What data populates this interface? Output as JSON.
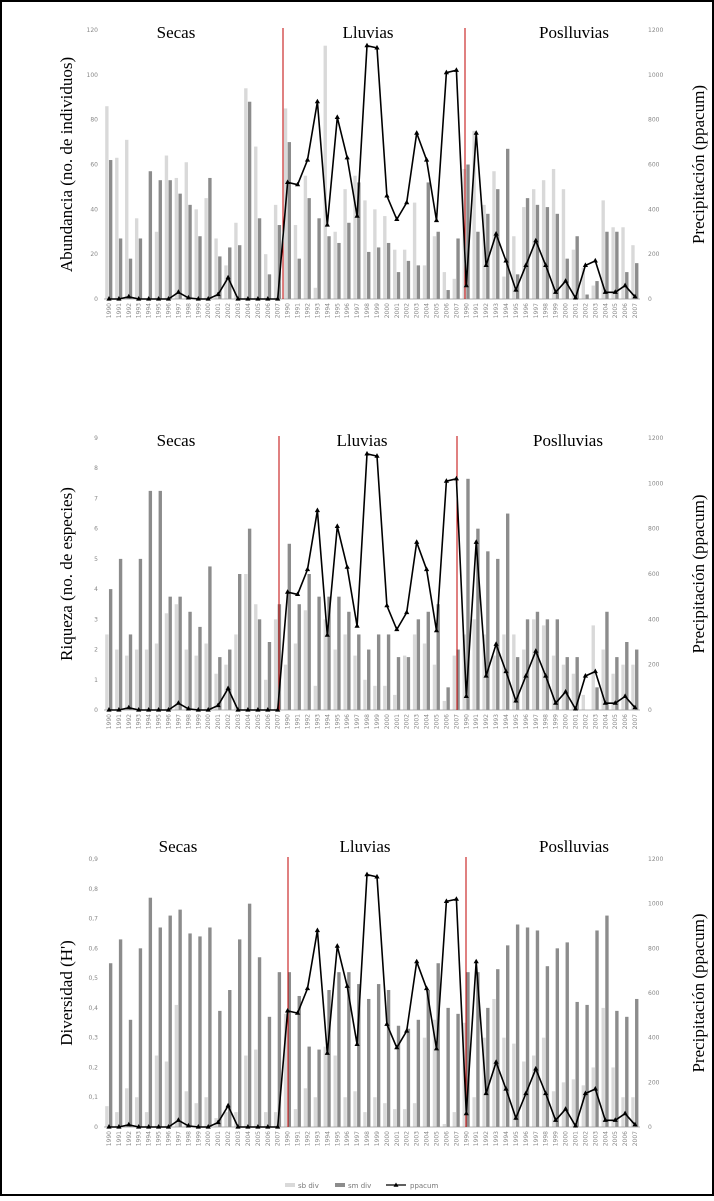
{
  "chart_data": [
    {
      "type": "bar",
      "ylabel": "Abundancia  (no. de  individuos)",
      "y2label": "Precipitación  (ppacum)",
      "ylim": [
        0,
        120
      ],
      "y_ticks": [
        0,
        20,
        40,
        60,
        80,
        100,
        120
      ],
      "y2lim": [
        0,
        1200
      ],
      "y2_ticks": [
        0,
        200,
        400,
        600,
        800,
        1000,
        1200
      ],
      "seasons": [
        "Secas",
        "Lluvias",
        "Poslluvias"
      ],
      "x_labels": [
        "1990",
        "1991",
        "1992",
        "1993",
        "1994",
        "1995",
        "1996",
        "1997",
        "1998",
        "1999",
        "2000",
        "2001",
        "2002",
        "2003",
        "2004",
        "2005",
        "2006",
        "2007",
        "1990",
        "1991",
        "1992",
        "1993",
        "1994",
        "1995",
        "1996",
        "1997",
        "1998",
        "1999",
        "2000",
        "2001",
        "2002",
        "2003",
        "2004",
        "2005",
        "2006",
        "2007",
        "1990",
        "1991",
        "1992",
        "1993",
        "1994",
        "1995",
        "1996",
        "1997",
        "1998",
        "1999",
        "2000",
        "2001",
        "2002",
        "2003",
        "2004",
        "2005",
        "2006",
        "2007"
      ],
      "series": [
        {
          "name": "sb div",
          "kind": "bar",
          "values": [
            86,
            63,
            71,
            36,
            0,
            30,
            64,
            54,
            61,
            40,
            45,
            27,
            15,
            34,
            94,
            68,
            20,
            42,
            85,
            33,
            55,
            5,
            113,
            30,
            49,
            55,
            44,
            40,
            37,
            22,
            22,
            43,
            15,
            28,
            12,
            9,
            58,
            75,
            42,
            57,
            10,
            28,
            41,
            49,
            53,
            58,
            49,
            22,
            14,
            6,
            44,
            32,
            32,
            24
          ]
        },
        {
          "name": "sm div",
          "kind": "bar",
          "values": [
            62,
            27,
            18,
            27,
            57,
            53,
            53,
            47,
            42,
            28,
            54,
            19,
            23,
            24,
            88,
            36,
            11,
            33,
            70,
            18,
            45,
            36,
            28,
            25,
            34,
            52,
            21,
            23,
            25,
            12,
            17,
            15,
            52,
            30,
            4,
            27,
            60,
            30,
            38,
            49,
            67,
            11,
            45,
            42,
            41,
            38,
            18,
            28,
            2,
            8,
            30,
            30,
            12,
            16
          ]
        },
        {
          "name": "ppacum",
          "kind": "line",
          "axis": "right",
          "values": [
            0,
            0,
            10,
            0,
            0,
            0,
            0,
            30,
            5,
            0,
            0,
            20,
            95,
            0,
            0,
            0,
            0,
            0,
            520,
            510,
            620,
            880,
            330,
            810,
            630,
            370,
            1130,
            1120,
            460,
            355,
            430,
            740,
            620,
            350,
            1010,
            1020,
            60,
            740,
            150,
            290,
            170,
            40,
            150,
            260,
            150,
            30,
            80,
            5,
            150,
            170,
            30,
            30,
            60,
            10
          ]
        }
      ]
    },
    {
      "type": "bar",
      "ylabel": "Riqueza  (no. de  especies)",
      "y2label": "Precipitación  (ppacum)",
      "ylim": [
        0,
        9
      ],
      "y_ticks": [
        0,
        1,
        2,
        3,
        4,
        5,
        6,
        7,
        8,
        9
      ],
      "y2lim": [
        0,
        1200
      ],
      "y2_ticks": [
        0,
        200,
        400,
        600,
        800,
        1000,
        1200
      ],
      "seasons": [
        "Secas",
        "Lluvias",
        "Poslluvias"
      ],
      "x_labels": [
        "1990",
        "1991",
        "1992",
        "1993",
        "1994",
        "1995",
        "1996",
        "1997",
        "1998",
        "1999",
        "2000",
        "2001",
        "2002",
        "2003",
        "2004",
        "2005",
        "2006",
        "2007",
        "1990",
        "1991",
        "1992",
        "1993",
        "1994",
        "1995",
        "1996",
        "1997",
        "1998",
        "1999",
        "2000",
        "2001",
        "2002",
        "2003",
        "2004",
        "2005",
        "2006",
        "2007",
        "1990",
        "1991",
        "1992",
        "1993",
        "1994",
        "1995",
        "1996",
        "1997",
        "1998",
        "1999",
        "2000",
        "2001",
        "2002",
        "2003",
        "2004",
        "2005",
        "2006",
        "2007"
      ],
      "series": [
        {
          "name": "sb div",
          "kind": "bar",
          "values": [
            2.5,
            2,
            1.8,
            2,
            2,
            2.2,
            3.2,
            3.5,
            2,
            1.8,
            2.2,
            1.2,
            1.5,
            2.5,
            4.5,
            3.5,
            1,
            3,
            1.5,
            2.2,
            3.3,
            0.8,
            3,
            2,
            2.5,
            1.8,
            1,
            0.8,
            0.8,
            0.5,
            1.8,
            2.5,
            2.2,
            1.5,
            0.3,
            1.8,
            2.5,
            3,
            2.5,
            1.8,
            2.5,
            2.5,
            2,
            3,
            2.8,
            1.8,
            1.5,
            1.2,
            0.5,
            2.8,
            2,
            1.2,
            1.5,
            1.5
          ]
        },
        {
          "name": "sm div",
          "kind": "bar",
          "values": [
            4,
            5,
            2.5,
            5,
            7.25,
            7.25,
            3.75,
            3.75,
            3.25,
            2.75,
            4.75,
            1.75,
            2,
            4.5,
            6,
            3,
            2.25,
            3.5,
            5.5,
            3.5,
            4.5,
            3.75,
            3.75,
            3.75,
            3.25,
            2.5,
            2,
            2.5,
            2.5,
            1.75,
            1.75,
            3,
            3.25,
            3.5,
            0.75,
            2,
            7.65,
            6,
            5.25,
            5,
            6.5,
            1.75,
            3,
            3.25,
            3,
            3,
            1.75,
            1.75,
            0,
            0.75,
            3.25,
            1.75,
            2.25,
            2
          ]
        },
        {
          "name": "ppacum",
          "kind": "line",
          "axis": "right",
          "values": [
            0,
            0,
            10,
            0,
            0,
            0,
            0,
            30,
            5,
            0,
            0,
            20,
            95,
            0,
            0,
            0,
            0,
            0,
            520,
            510,
            620,
            880,
            330,
            810,
            630,
            370,
            1130,
            1120,
            460,
            355,
            430,
            740,
            620,
            350,
            1010,
            1020,
            60,
            740,
            150,
            290,
            170,
            40,
            150,
            260,
            150,
            30,
            80,
            5,
            150,
            170,
            30,
            30,
            60,
            10
          ]
        }
      ]
    },
    {
      "type": "bar",
      "ylabel": "Diversidad  (H')",
      "y2label": "Precipitación  (ppacum)",
      "ylim": [
        0,
        0.9
      ],
      "y_ticks": [
        "0",
        "0,1",
        "0,2",
        "0,3",
        "0,4",
        "0,5",
        "0,6",
        "0,7",
        "0,8",
        "0,9"
      ],
      "y2lim": [
        0,
        1200
      ],
      "y2_ticks": [
        0,
        200,
        400,
        600,
        800,
        1000,
        1200
      ],
      "seasons": [
        "Secas",
        "Lluvias",
        "Poslluvias"
      ],
      "x_labels": [
        "1990",
        "1991",
        "1992",
        "1993",
        "1994",
        "1995",
        "1996",
        "1997",
        "1998",
        "1999",
        "2000",
        "2001",
        "2002",
        "2003",
        "2004",
        "2005",
        "2006",
        "2007",
        "1990",
        "1991",
        "1992",
        "1993",
        "1994",
        "1995",
        "1996",
        "1997",
        "1998",
        "1999",
        "2000",
        "2001",
        "2002",
        "2003",
        "2004",
        "2005",
        "2006",
        "2007",
        "1990",
        "1991",
        "1992",
        "1993",
        "1994",
        "1995",
        "1996",
        "1997",
        "1998",
        "1999",
        "2000",
        "2001",
        "2002",
        "2003",
        "2004",
        "2005",
        "2006",
        "2007"
      ],
      "series": [
        {
          "name": "sb div",
          "kind": "bar",
          "values": [
            0.07,
            0.05,
            0.13,
            0.1,
            0.05,
            0.24,
            0.22,
            0.41,
            0.12,
            0.08,
            0.1,
            0.03,
            0.05,
            0.05,
            0.24,
            0.26,
            0.05,
            0.05,
            0.38,
            0.06,
            0.13,
            0.1,
            0.27,
            0.24,
            0.1,
            0.12,
            0.05,
            0.1,
            0.08,
            0.06,
            0.06,
            0.08,
            0.3,
            0.36,
            0.01,
            0.05,
            0.35,
            0.1,
            0.3,
            0.43,
            0.3,
            0.28,
            0.22,
            0.24,
            0.3,
            0.12,
            0.15,
            0.16,
            0.14,
            0.2,
            0.4,
            0.2,
            0.1,
            0.1
          ]
        },
        {
          "name": "sm div",
          "kind": "bar",
          "values": [
            0.55,
            0.63,
            0.36,
            0.6,
            0.77,
            0.67,
            0.71,
            0.73,
            0.65,
            0.64,
            0.67,
            0.39,
            0.46,
            0.63,
            0.75,
            0.57,
            0.37,
            0.52,
            0.52,
            0.44,
            0.27,
            0.26,
            0.46,
            0.52,
            0.52,
            0.48,
            0.43,
            0.48,
            0.46,
            0.34,
            0.33,
            0.36,
            0.46,
            0.55,
            0.4,
            0.38,
            0.52,
            0.52,
            0.4,
            0.53,
            0.61,
            0.68,
            0.67,
            0.66,
            0.54,
            0.6,
            0.62,
            0.42,
            0.41,
            0.66,
            0.71,
            0.39,
            0.37,
            0.43
          ]
        },
        {
          "name": "ppacum",
          "kind": "line",
          "axis": "right",
          "values": [
            0,
            0,
            10,
            0,
            0,
            0,
            0,
            30,
            5,
            0,
            0,
            20,
            95,
            0,
            0,
            0,
            0,
            0,
            520,
            510,
            620,
            880,
            330,
            810,
            630,
            370,
            1130,
            1120,
            460,
            355,
            430,
            740,
            620,
            350,
            1010,
            1020,
            60,
            740,
            150,
            290,
            170,
            40,
            150,
            260,
            150,
            30,
            80,
            5,
            150,
            170,
            30,
            30,
            60,
            10
          ]
        }
      ]
    }
  ],
  "legend": {
    "items": [
      {
        "label": "sb div",
        "color": "#d9d9d9"
      },
      {
        "label": "sm div",
        "color": "#8c8c8c"
      },
      {
        "label": "ppacum",
        "color": "#000000"
      }
    ]
  },
  "colors": {
    "sb": "#d9d9d9",
    "sm": "#8c8c8c",
    "line": "#000000",
    "divider": "#c00000",
    "frame": "#000000"
  }
}
